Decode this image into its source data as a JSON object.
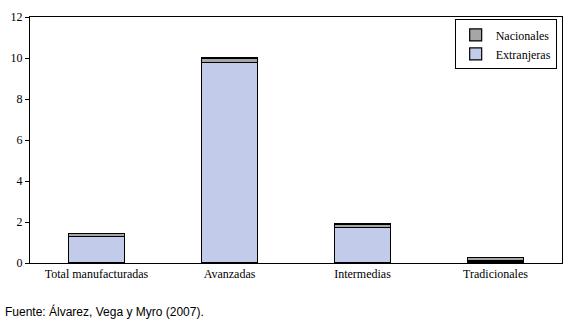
{
  "chart_data": {
    "type": "bar",
    "stacked": true,
    "categories": [
      "Total manufacturadas",
      "Avanzadas",
      "Intermedias",
      "Tradicionales"
    ],
    "series": [
      {
        "name": "Extranjeras",
        "color": "#c3cbeb",
        "values": [
          1.3,
          9.8,
          1.75,
          0.1
        ]
      },
      {
        "name": "Nacionales",
        "color": "#a6a6a6",
        "values": [
          0.15,
          0.2,
          0.15,
          0.15
        ]
      }
    ],
    "ylim": [
      0,
      12
    ],
    "yticks": [
      0,
      2,
      4,
      6,
      8,
      10,
      12
    ],
    "grid": false,
    "legend": "top right",
    "annotations": [
      "Fuente: Álvarez, Vega y Myro (2007)."
    ]
  }
}
